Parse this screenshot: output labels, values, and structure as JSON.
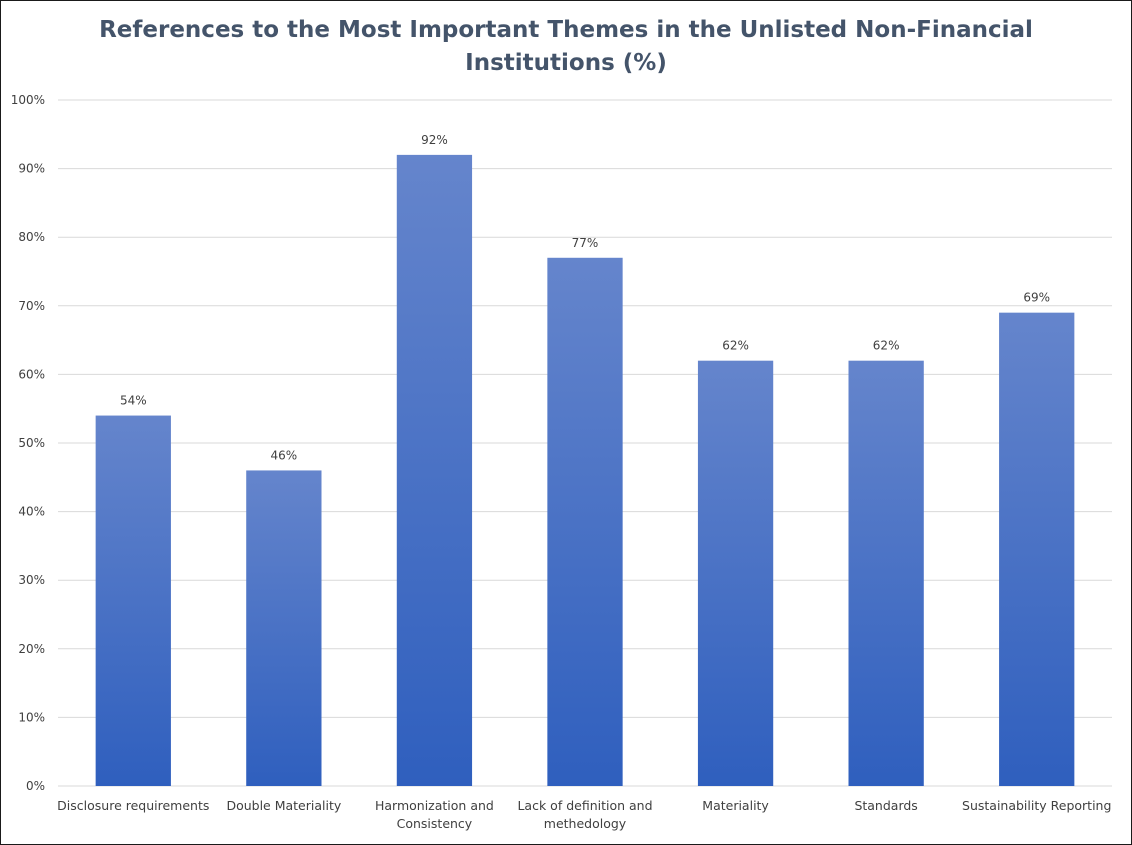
{
  "chart_data": {
    "type": "bar",
    "title_line1": "References to the Most Important Themes in the Unlisted Non-Financial",
    "title_line2": "Institutions (%)",
    "categories": [
      [
        "Disclosure requirements"
      ],
      [
        "Double Materiality"
      ],
      [
        "Harmonization and",
        "Consistency"
      ],
      [
        "Lack of definition and",
        "methedology"
      ],
      [
        "Materiality"
      ],
      [
        "Standards"
      ],
      [
        "Sustainability Reporting"
      ]
    ],
    "values": [
      54,
      46,
      92,
      77,
      62,
      62,
      69
    ],
    "data_labels": [
      "54%",
      "46%",
      "92%",
      "77%",
      "62%",
      "62%",
      "69%"
    ],
    "ylim": [
      0,
      100
    ],
    "yticks": [
      0,
      10,
      20,
      30,
      40,
      50,
      60,
      70,
      80,
      90,
      100
    ],
    "ytick_labels": [
      "0%",
      "10%",
      "20%",
      "30%",
      "40%",
      "50%",
      "60%",
      "70%",
      "80%",
      "90%",
      "100%"
    ],
    "grid": true,
    "legend": "none",
    "colors": {
      "bar_top": "#6585cc",
      "bar_bottom": "#2f5fbe",
      "grid": "#d9d9d9",
      "title": "#44546a",
      "text": "#404040"
    }
  }
}
